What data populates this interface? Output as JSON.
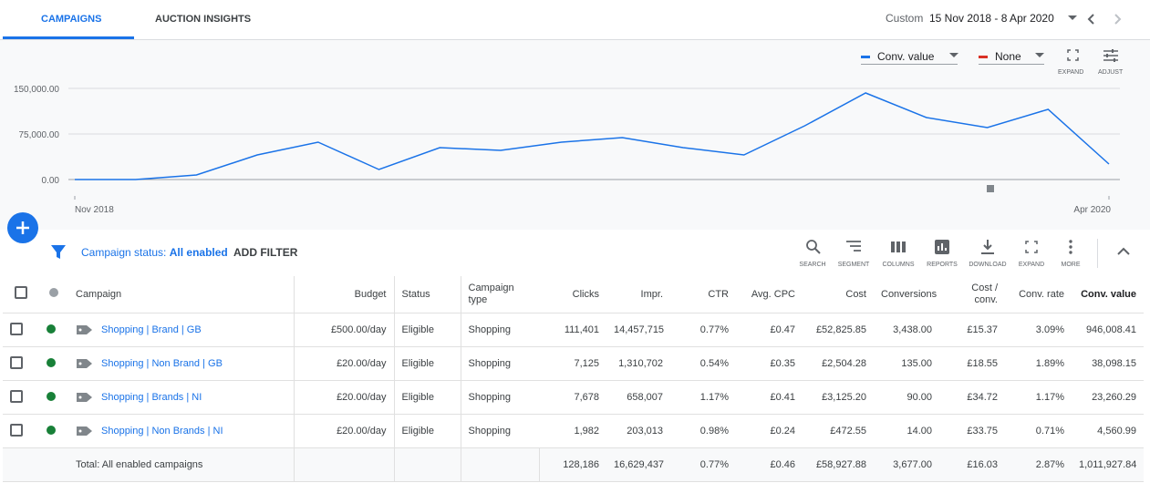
{
  "tabs": [
    "CAMPAIGNS",
    "AUCTION INSIGHTS"
  ],
  "date_range": {
    "label": "Custom",
    "value": "15 Nov 2018 - 8 Apr 2020"
  },
  "chart_controls": {
    "second_metric": "None",
    "expand": "EXPAND",
    "adjust": "ADJUST"
  },
  "chart_data": {
    "type": "line",
    "categories": [
      "Nov 2018",
      null,
      null,
      null,
      null,
      null,
      null,
      null,
      null,
      null,
      null,
      null,
      null,
      null,
      null,
      null,
      null,
      "Apr 2020"
    ],
    "series": [
      {
        "name": "Conv. value",
        "color": "#1a73e8",
        "values": [
          0,
          0,
          7500,
          40500,
          61500,
          16500,
          52500,
          48000,
          61500,
          69000,
          52500,
          40500,
          88500,
          142500,
          102000,
          85500,
          115500,
          25500
        ]
      }
    ],
    "ylim": [
      0,
      150000
    ],
    "yticks": [
      {
        "value": 0,
        "label": "0.00"
      },
      {
        "value": 75000,
        "label": "75,000.00"
      },
      {
        "value": 150000,
        "label": "150,000.00"
      }
    ],
    "grid": true
  },
  "filter": {
    "label": "Campaign status:",
    "value": "All enabled",
    "add": "ADD FILTER"
  },
  "toolbar": [
    "SEARCH",
    "SEGMENT",
    "COLUMNS",
    "REPORTS",
    "DOWNLOAD",
    "EXPAND",
    "MORE"
  ],
  "table": {
    "headers": [
      "Campaign",
      "Budget",
      "Status",
      "Campaign type",
      "Clicks",
      "Impr.",
      "CTR",
      "Avg. CPC",
      "Cost",
      "Conversions",
      "Cost / conv.",
      "Conv. rate",
      "Conv. value"
    ],
    "rows": [
      [
        "Shopping | Brand | GB",
        "£500.00/day",
        "Eligible",
        "Shopping",
        "111,401",
        "14,457,715",
        "0.77%",
        "£0.47",
        "£52,825.85",
        "3,438.00",
        "£15.37",
        "3.09%",
        "946,008.41"
      ],
      [
        "Shopping | Non Brand | GB",
        "£20.00/day",
        "Eligible",
        "Shopping",
        "7,125",
        "1,310,702",
        "0.54%",
        "£0.35",
        "£2,504.28",
        "135.00",
        "£18.55",
        "1.89%",
        "38,098.15"
      ],
      [
        "Shopping | Brands | NI",
        "£20.00/day",
        "Eligible",
        "Shopping",
        "7,678",
        "658,007",
        "1.17%",
        "£0.41",
        "£3,125.20",
        "90.00",
        "£34.72",
        "1.17%",
        "23,260.29"
      ],
      [
        "Shopping | Non Brands | NI",
        "£20.00/day",
        "Eligible",
        "Shopping",
        "1,982",
        "203,013",
        "0.98%",
        "£0.24",
        "£472.55",
        "14.00",
        "£33.75",
        "0.71%",
        "4,560.99"
      ]
    ],
    "total": {
      "label": "Total: All enabled campaigns",
      "values": [
        "128,186",
        "16,629,437",
        "0.77%",
        "£0.46",
        "£58,927.88",
        "3,677.00",
        "£16.03",
        "2.87%",
        "1,011,927.84"
      ]
    }
  }
}
